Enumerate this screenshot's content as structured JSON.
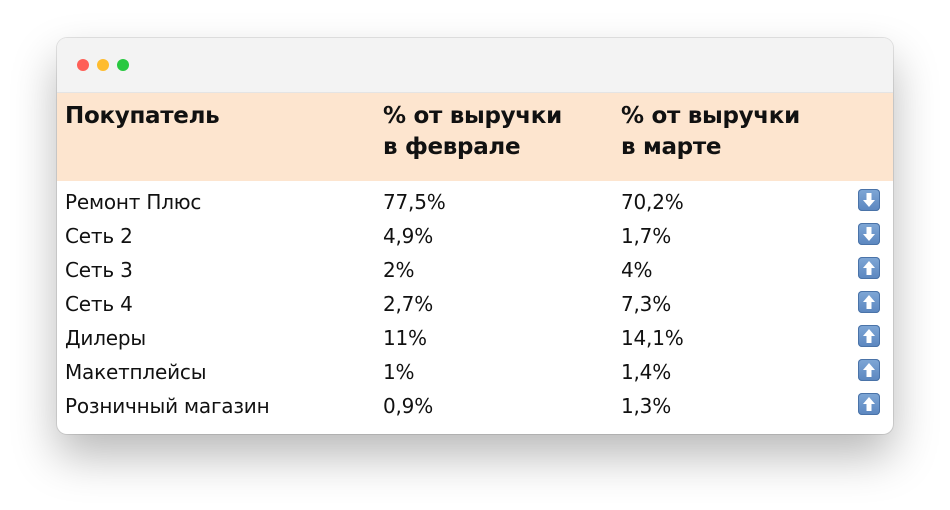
{
  "window": {
    "controls": [
      "close",
      "minimize",
      "zoom"
    ]
  },
  "table": {
    "headers": {
      "buyer": "Покупатель",
      "feb": "% от выручки\nв феврале",
      "mar": "% от выручки\nв марте"
    },
    "header_bg": "#fde5cf",
    "rows": [
      {
        "buyer": "Ремонт Плюс",
        "feb": "77,5%",
        "mar": "70,2%",
        "trend": "down-arrow-icon"
      },
      {
        "buyer": "Сеть 2",
        "feb": "4,9%",
        "mar": "1,7%",
        "trend": "down-arrow-icon"
      },
      {
        "buyer": "Сеть 3",
        "feb": "2%",
        "mar": "4%",
        "trend": "up-arrow-icon"
      },
      {
        "buyer": "Сеть 4",
        "feb": "2,7%",
        "mar": "7,3%",
        "trend": "up-arrow-icon"
      },
      {
        "buyer": "Дилеры",
        "feb": "11%",
        "mar": "14,1%",
        "trend": "up-arrow-icon"
      },
      {
        "buyer": "Макетплейсы",
        "feb": "1%",
        "mar": "1,4%",
        "trend": "up-arrow-icon"
      },
      {
        "buyer": "Розничный магазин",
        "feb": "0,9%",
        "mar": "1,3%",
        "trend": "up-arrow-icon"
      }
    ]
  }
}
